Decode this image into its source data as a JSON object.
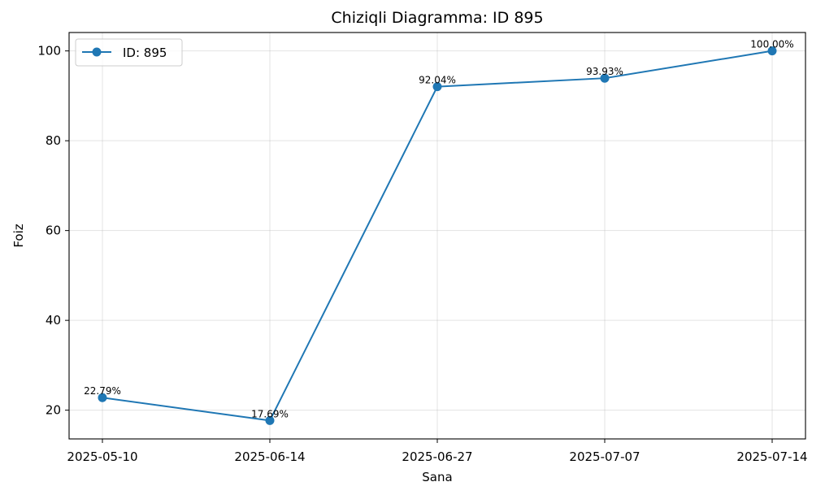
{
  "chart_data": {
    "type": "line",
    "title": "Chiziqli Diagramma: ID 895",
    "xlabel": "Sana",
    "ylabel": "Foiz",
    "categories": [
      "2025-05-10",
      "2025-06-14",
      "2025-06-27",
      "2025-07-07",
      "2025-07-14"
    ],
    "series": [
      {
        "name": "ID: 895",
        "values": [
          22.79,
          17.69,
          92.04,
          93.93,
          100.0
        ],
        "labels": [
          "22.79%",
          "17.69%",
          "92.04%",
          "93.93%",
          "100.00%"
        ],
        "color": "#1f77b4"
      }
    ],
    "ylim": [
      13.6,
      104.1
    ],
    "yticks": [
      20,
      40,
      60,
      80,
      100
    ],
    "grid": true,
    "legend_position": "top-left"
  }
}
